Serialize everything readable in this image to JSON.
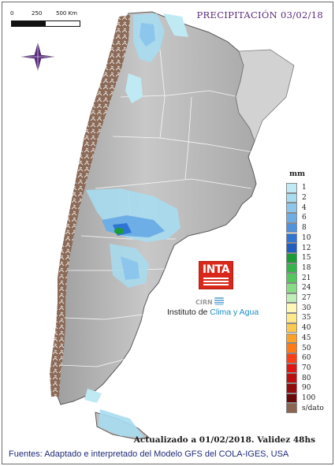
{
  "map": {
    "title": "PRECIPITACIÓN 03/02/18",
    "scale_bar": {
      "labels": [
        "0",
        "250",
        "500 Km"
      ]
    },
    "legend": {
      "unit": "mm",
      "classes": [
        {
          "label": "1",
          "color": "#bfeaf4"
        },
        {
          "label": "2",
          "color": "#a7dcf0"
        },
        {
          "label": "4",
          "color": "#8cc6ec"
        },
        {
          "label": "6",
          "color": "#6eaee6"
        },
        {
          "label": "8",
          "color": "#4f93de"
        },
        {
          "label": "10",
          "color": "#2f76d4"
        },
        {
          "label": "12",
          "color": "#1f5fc2"
        },
        {
          "label": "15",
          "color": "#1d9b36"
        },
        {
          "label": "18",
          "color": "#35b44a"
        },
        {
          "label": "21",
          "color": "#55c85d"
        },
        {
          "label": "24",
          "color": "#86dd86"
        },
        {
          "label": "27",
          "color": "#bfefb5"
        },
        {
          "label": "30",
          "color": "#fff7b6"
        },
        {
          "label": "35",
          "color": "#ffe88a"
        },
        {
          "label": "40",
          "color": "#ffc84f"
        },
        {
          "label": "45",
          "color": "#ffa126"
        },
        {
          "label": "50",
          "color": "#ff7a17"
        },
        {
          "label": "60",
          "color": "#ff3d17"
        },
        {
          "label": "70",
          "color": "#e11612"
        },
        {
          "label": "80",
          "color": "#bd0f0f"
        },
        {
          "label": "90",
          "color": "#930b0b"
        },
        {
          "label": "100",
          "color": "#6b0808"
        },
        {
          "label": "s/dato",
          "color": "#8a6552"
        }
      ]
    },
    "updated_note": "Actualizado a 01/02/2018. Validez 48hs",
    "sources_note": "Fuentes: Adaptado e interpretado del Modelo GFS del COLA-IGES, USA",
    "logo": {
      "inta": "INTA",
      "cirn": "CIRN",
      "institute_prefix": "Instituto de ",
      "institute_highlight": "Clima y Agua"
    }
  }
}
